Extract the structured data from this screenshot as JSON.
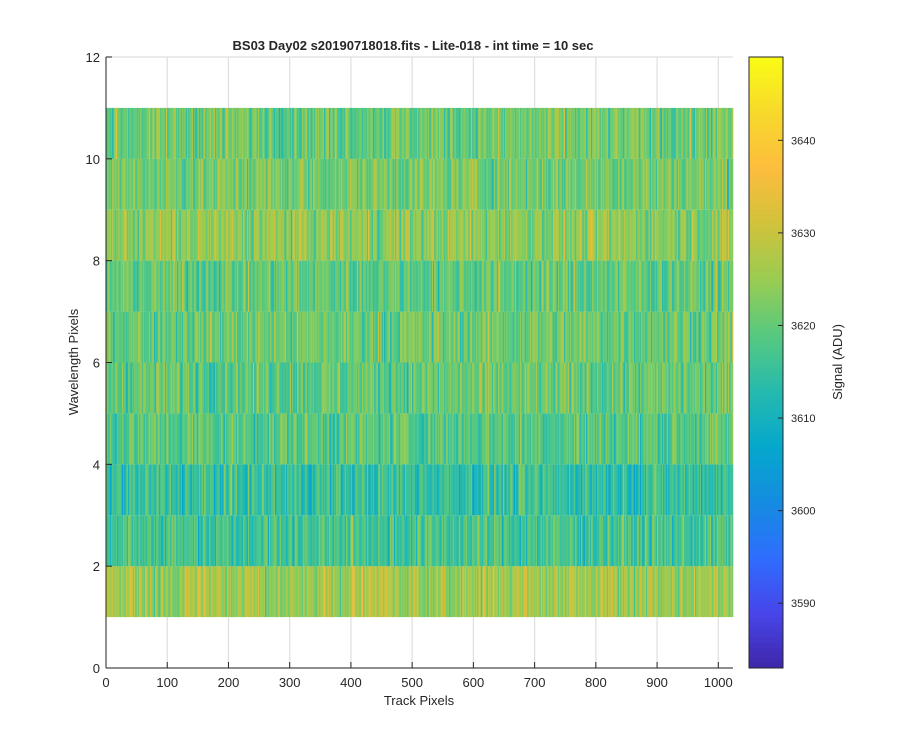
{
  "chart_data": {
    "type": "heatmap",
    "title": "BS03 Day02  s20190718018.fits - Lite-018 - int time = 10 sec",
    "xlabel": "Track Pixels",
    "ylabel": "Wavelength Pixels",
    "xlim": [
      0,
      1024
    ],
    "ylim": [
      0,
      12
    ],
    "xticks": [
      0,
      100,
      200,
      300,
      400,
      500,
      600,
      700,
      800,
      900,
      1000
    ],
    "yticks": [
      0,
      2,
      4,
      6,
      8,
      10,
      12
    ],
    "grid": true,
    "data_extent": {
      "x": [
        0,
        1024
      ],
      "y": [
        1,
        11
      ]
    },
    "rows": 10,
    "columns": 1024,
    "row_centers": [
      1.5,
      2.5,
      3.5,
      4.5,
      5.5,
      6.5,
      7.5,
      8.5,
      9.5,
      10.5
    ],
    "row_mean_signal": [
      3626,
      3617,
      3615,
      3619,
      3620,
      3621,
      3620,
      3624,
      3622,
      3621
    ],
    "colorbar": {
      "label": "Signal (ADU)",
      "colormap": "parula",
      "clim": [
        3583,
        3649
      ],
      "ticks": [
        3590,
        3600,
        3610,
        3620,
        3630,
        3640
      ],
      "placement": "right"
    }
  }
}
